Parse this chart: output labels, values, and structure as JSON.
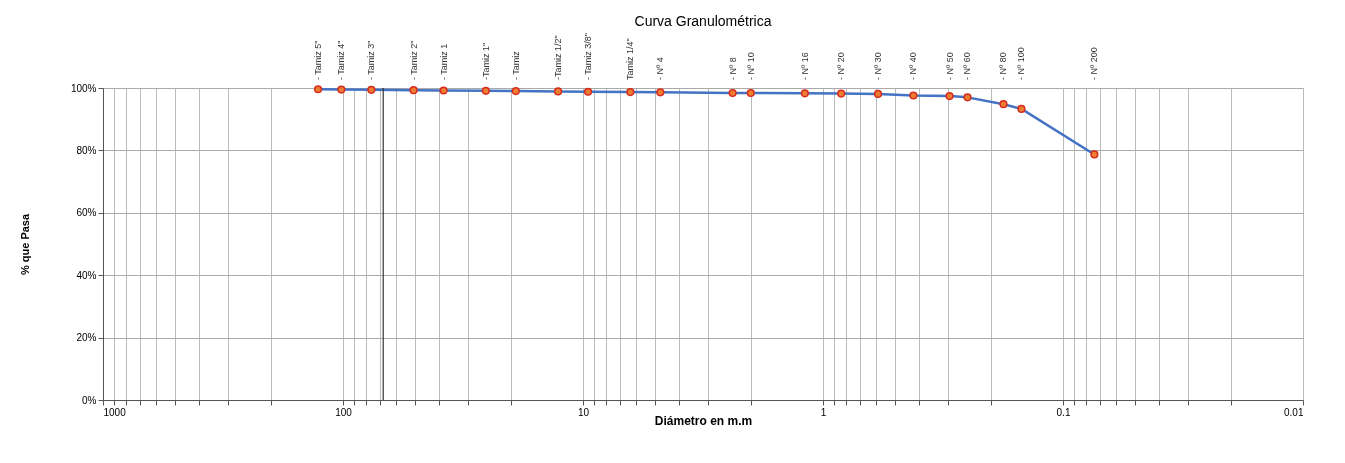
{
  "chart_data": {
    "type": "line",
    "title": "Curva Granulométrica",
    "xlabel": "Diámetro en m.m",
    "ylabel": "% que Pasa",
    "x": [
      127,
      101.6,
      76.2,
      50.8,
      38.1,
      25.4,
      19.05,
      12.7,
      9.525,
      6.35,
      4.76,
      2.38,
      2.0,
      1.19,
      0.84,
      0.59,
      0.42,
      0.297,
      0.25,
      0.177,
      0.149,
      0.074
    ],
    "series": [
      {
        "color": "#4472c4",
        "values": [
          99.6,
          99.5,
          99.4,
          99.3,
          99.2,
          99.1,
          99.0,
          98.9,
          98.8,
          98.7,
          98.6,
          98.4,
          98.4,
          98.3,
          98.2,
          98.1,
          97.6,
          97.4,
          97.0,
          94.8,
          93.3,
          78.7
        ],
        "colors": [
          "#ed7d31",
          "#ed7d31",
          "#ed7d31",
          "#ed7d31",
          "#ed7d31",
          "#ed7d31",
          "#ed7d31",
          "#ed7d31",
          "#ed7d31",
          "#ed7d31",
          "#ed7d31",
          "#ed7d31",
          "#ed7d31",
          "#ed7d31",
          "#ed7d31",
          "#ed7d31",
          "#ed7d31",
          "#ed7d31",
          "#ed7d31",
          "#ed7d31",
          "#ed7d31",
          "#ed7d31"
        ]
      }
    ],
    "log": "x",
    "marker": "circle",
    "line_style": "solid",
    "grid": true,
    "xlim": [
      1000,
      0.01
    ],
    "xticks": [
      1000,
      {
        "value": 900,
        "label": null
      },
      {
        "value": 800,
        "label": null
      },
      {
        "value": 700,
        "label": null
      },
      {
        "value": 600,
        "label": null
      },
      {
        "value": 500,
        "label": null
      },
      {
        "value": 400,
        "label": null
      },
      {
        "value": 300,
        "label": null
      },
      {
        "value": 200,
        "label": null
      },
      100,
      {
        "value": 90,
        "label": null
      },
      {
        "value": 80,
        "label": null
      },
      {
        "value": 70,
        "label": null
      },
      {
        "value": 60,
        "label": null
      },
      {
        "value": 50,
        "label": null
      },
      {
        "value": 40,
        "label": null
      },
      {
        "value": 30,
        "label": null
      },
      {
        "value": 20,
        "label": null
      },
      10,
      {
        "value": 9,
        "label": null
      },
      {
        "value": 8,
        "label": null
      },
      {
        "value": 7,
        "label": null
      },
      {
        "value": 6,
        "label": null
      },
      {
        "value": 5,
        "label": null
      },
      {
        "value": 4,
        "label": null
      },
      {
        "value": 3,
        "label": null
      },
      {
        "value": 2,
        "label": null
      },
      1,
      {
        "value": 0.9,
        "label": null
      },
      {
        "value": 0.8,
        "label": null
      },
      {
        "value": 0.7,
        "label": null
      },
      {
        "value": 0.6,
        "label": null
      },
      {
        "value": 0.5,
        "label": null
      },
      {
        "value": 0.4,
        "label": null
      },
      {
        "value": 0.3,
        "label": null
      },
      {
        "value": 0.2,
        "label": null
      },
      0.1,
      {
        "value": 0.09,
        "label": null
      },
      {
        "value": 0.08,
        "label": null
      },
      {
        "value": 0.07,
        "label": null
      },
      {
        "value": 0.06,
        "label": null
      },
      {
        "value": 0.05,
        "label": null
      },
      {
        "value": 0.04,
        "label": null
      },
      {
        "value": 0.03,
        "label": null
      },
      {
        "value": 0.02,
        "label": null
      },
      0.01
    ],
    "annotations": [
      "- Tamiz 5\"",
      "- Tamiz 4\"",
      "- Tamiz 3\"",
      "- Tamiz 2\"",
      "- Tamiz 1",
      "-Tamiz 1\"",
      "- Tamiz",
      "-Tamiz 1/2\"",
      "- Tamiz 3/8\"",
      "Tamiz 1/4\"",
      "- Nº 4",
      "- Nº 8",
      "- Nº 10",
      "- Nº 16",
      "- Nº 20",
      "- Nº 30",
      "- Nº 40",
      "- Nº 50",
      "- Nº 60",
      "- Nº 80",
      "- Nº 100",
      "- Nº 200"
    ],
    "ylim": [
      0,
      100
    ],
    "yticks": [
      {
        "value": 0,
        "label": "0%"
      },
      {
        "value": 20,
        "label": "20%"
      },
      {
        "value": 40,
        "label": "40%"
      },
      {
        "value": 60,
        "label": "60%"
      },
      {
        "value": 80,
        "label": "80%"
      },
      {
        "value": 100,
        "label": "100%"
      }
    ],
    "ref_lines": [
      {
        "axis": "x",
        "value": 68,
        "color": "#333333",
        "line_style": "solid"
      }
    ]
  }
}
